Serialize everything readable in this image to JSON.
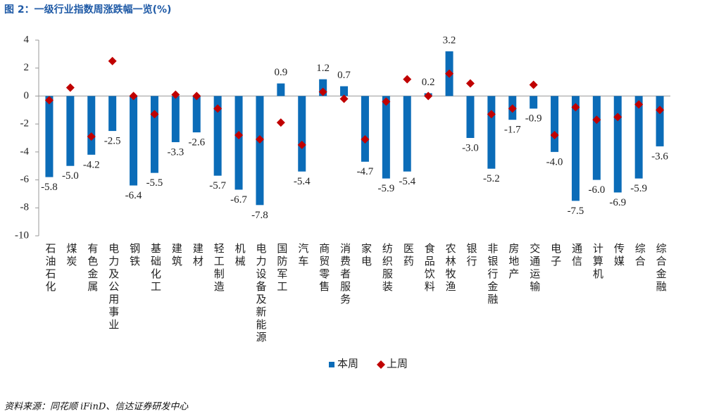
{
  "chart_data": {
    "type": "bar",
    "title": "图 2：一级行业指数周涨跌幅一览(%)",
    "source": "资料来源：同花顺 iFinD、信达证券研发中心",
    "categories": [
      "石油石化",
      "煤炭",
      "有色金属",
      "电力及公用事业",
      "钢铁",
      "基础化工",
      "建筑",
      "建材",
      "轻工制造",
      "机械",
      "电力设备及新能源",
      "国防军工",
      "汽车",
      "商贸零售",
      "消费者服务",
      "家电",
      "纺织服装",
      "医药",
      "食品饮料",
      "农林牧渔",
      "银行",
      "非银行金融",
      "房地产",
      "交通运输",
      "电子",
      "通信",
      "计算机",
      "传媒",
      "综合",
      "综合金融"
    ],
    "series": [
      {
        "name": "本周",
        "type": "bar",
        "color": "#0b6cb8",
        "values": [
          -5.8,
          -5.0,
          -4.2,
          -2.5,
          -6.4,
          -5.5,
          -3.3,
          -2.6,
          -5.7,
          -6.7,
          -7.8,
          0.9,
          -5.4,
          1.2,
          0.7,
          -4.7,
          -5.9,
          -5.4,
          0.2,
          3.2,
          -3.0,
          -5.2,
          -1.7,
          -0.9,
          -4.0,
          -7.5,
          -6.0,
          -6.9,
          -5.9,
          -3.6
        ],
        "value_labels": [
          "-5.8",
          "-5.0",
          "-4.2",
          "-2.5",
          "-6.4",
          "-5.5",
          "-3.3",
          "-2.6",
          "-5.7",
          "-6.7",
          "-7.8",
          "0.9",
          "-5.4",
          "1.2",
          "0.7",
          "-4.7",
          "-5.9",
          "-5.4",
          "0.2",
          "3.2",
          "-3.0",
          "-5.2",
          "-1.7",
          "-0.9",
          "-4.0",
          "-7.5",
          "-6.0",
          "-6.9",
          "-5.9",
          "-3.6"
        ]
      },
      {
        "name": "上周",
        "type": "scatter",
        "color": "#c00000",
        "values": [
          -0.3,
          0.6,
          -2.9,
          2.5,
          0.0,
          -1.3,
          0.1,
          0.0,
          -0.9,
          -2.8,
          -3.1,
          -1.9,
          -3.5,
          0.3,
          -0.2,
          -3.1,
          -0.4,
          1.2,
          0.0,
          1.6,
          0.9,
          -1.3,
          -0.9,
          0.8,
          -2.8,
          -0.8,
          -1.7,
          -1.5,
          -0.6,
          -1.0
        ]
      }
    ],
    "ylim": [
      -10,
      4
    ],
    "yticks": [
      4,
      2,
      0,
      -2,
      -4,
      -6,
      -8,
      -10
    ]
  }
}
